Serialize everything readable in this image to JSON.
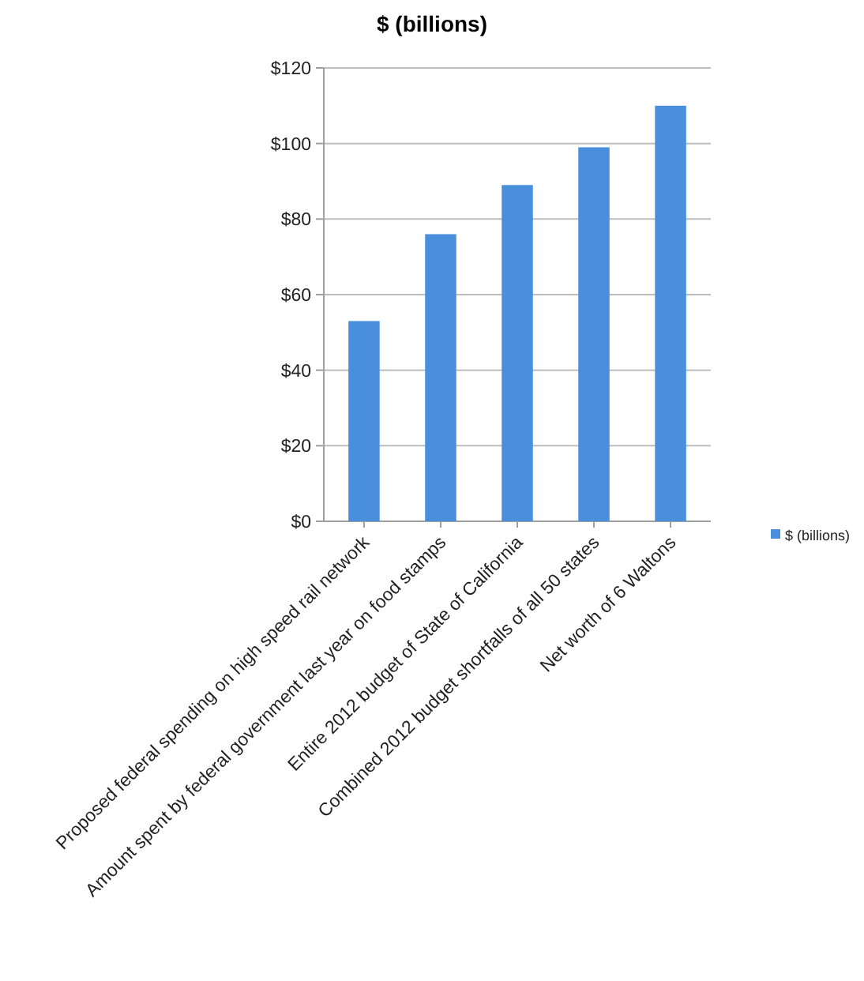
{
  "chart_data": {
    "type": "bar",
    "title": "$ (billions)",
    "categories": [
      "Proposed federal spending on high speed rail network",
      "Amount spent by federal government last year on food stamps",
      "Entire 2012 budget of State of California",
      "Combined 2012 budget shortfalls of all 50 states",
      "Net worth of 6 Waltons"
    ],
    "series": [
      {
        "name": "$ (billions)",
        "color": "#4a8fdc",
        "values": [
          53,
          76,
          89,
          99,
          110
        ]
      }
    ],
    "ylim": [
      0,
      120
    ],
    "yticks": [
      {
        "value": 0,
        "label": "$0"
      },
      {
        "value": 20,
        "label": "$20"
      },
      {
        "value": 40,
        "label": "$40"
      },
      {
        "value": 60,
        "label": "$60"
      },
      {
        "value": 80,
        "label": "$80"
      },
      {
        "value": 100,
        "label": "$100"
      },
      {
        "value": 120,
        "label": "$120"
      }
    ],
    "grid": "y",
    "legend": "right"
  }
}
